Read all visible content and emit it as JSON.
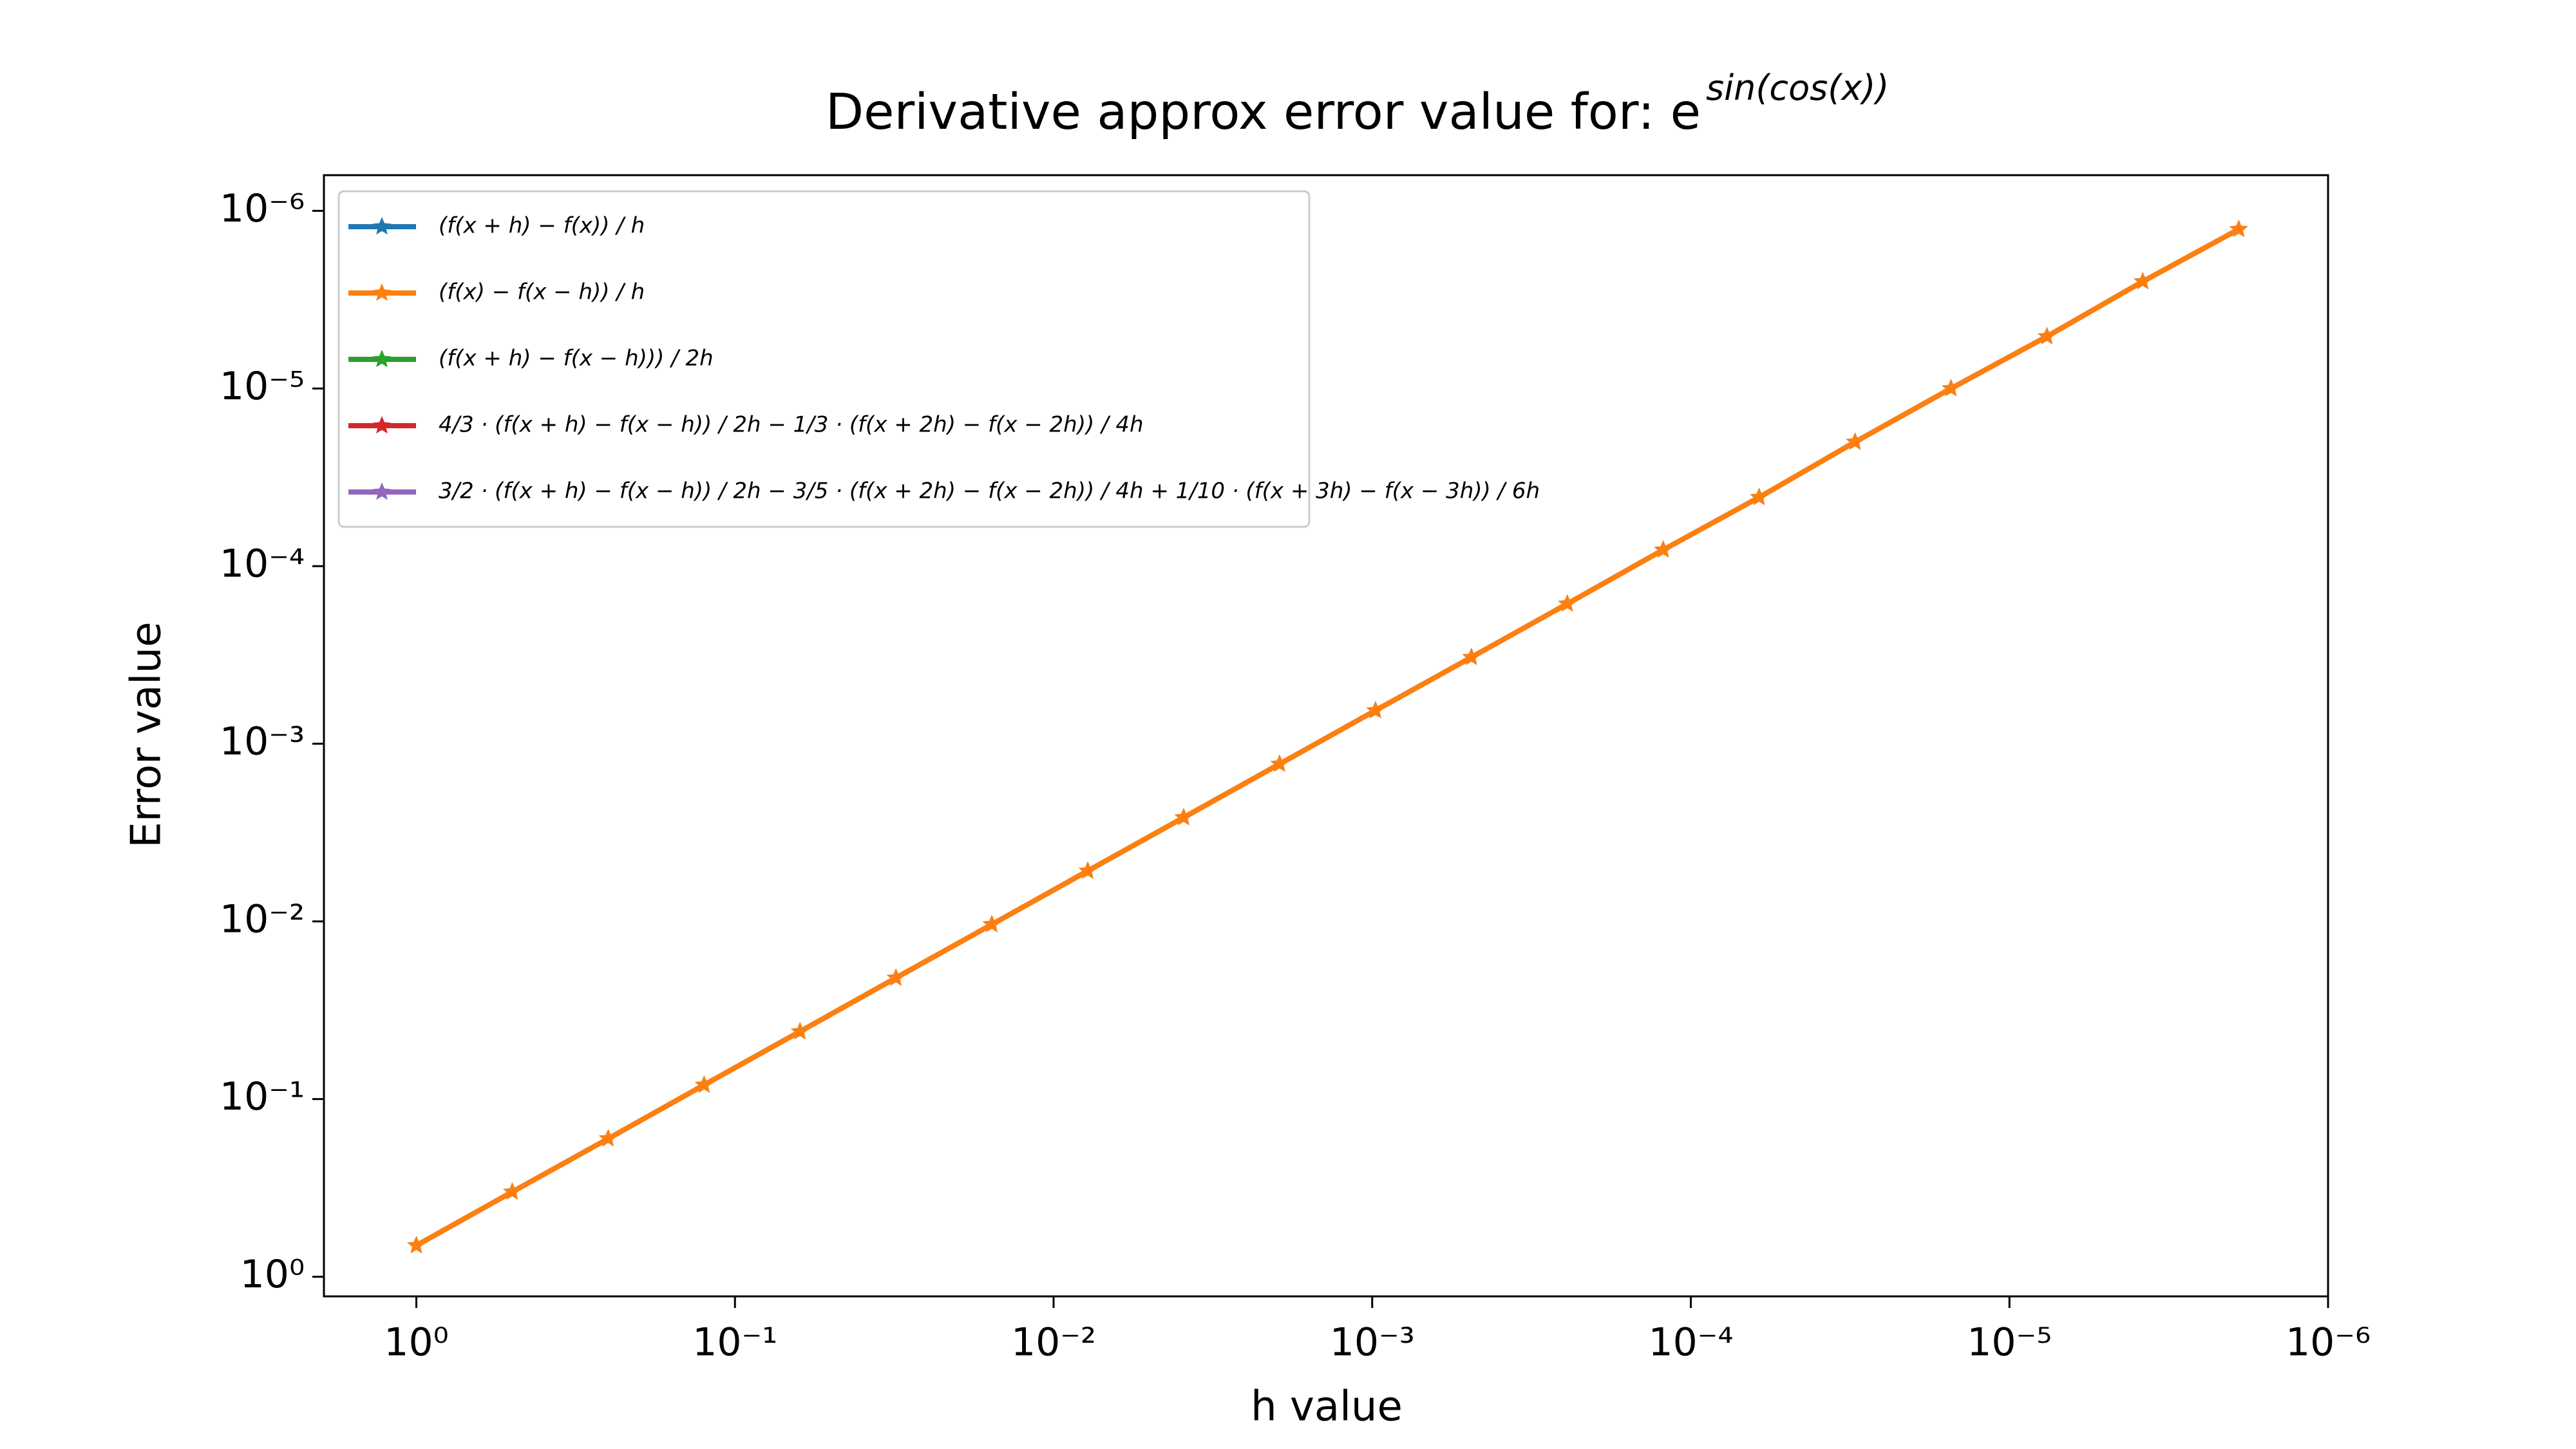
{
  "chart_data": {
    "type": "line",
    "title": "Derivative approx error value for: e",
    "title_superscript": "sin(cos(x))",
    "x_label": "h value",
    "y_label": "Error value",
    "log_x": true,
    "log_y": true,
    "xlim": [
      1.95,
      1e-06
    ],
    "ylim": [
      1.29,
      6.3e-07
    ],
    "xticks": [
      {
        "value": 1,
        "label": "10⁰"
      },
      {
        "value": 0.1,
        "label": "10⁻¹"
      },
      {
        "value": 0.01,
        "label": "10⁻²"
      },
      {
        "value": 0.001,
        "label": "10⁻³"
      },
      {
        "value": 0.0001,
        "label": "10⁻⁴"
      },
      {
        "value": 1e-05,
        "label": "10⁻⁵"
      },
      {
        "value": 1e-06,
        "label": "10⁻⁶"
      }
    ],
    "yticks": [
      {
        "value": 1,
        "label": "10⁰"
      },
      {
        "value": 0.1,
        "label": "10⁻¹"
      },
      {
        "value": 0.01,
        "label": "10⁻²"
      },
      {
        "value": 0.001,
        "label": "10⁻³"
      },
      {
        "value": 0.0001,
        "label": "10⁻⁴"
      },
      {
        "value": 1e-05,
        "label": "10⁻⁵"
      },
      {
        "value": 1e-06,
        "label": "10⁻⁶"
      }
    ],
    "legend": "upper left",
    "x": [
      1,
      0.5,
      0.25,
      0.125,
      0.0625,
      0.03125,
      0.015625,
      0.0078125,
      0.00390625,
      0.001953125,
      0.0009765625,
      0.00048828125,
      0.000244140625,
      0.0001220703125,
      6.103515625e-05,
      3.0517578125e-05,
      1.52587890625e-05,
      7.62939453125e-06,
      3.814697265625e-06,
      1.9073486328125e-06
    ],
    "series": [
      {
        "name": "(f(x + h) − f(x)) / h",
        "color": "#1f77b4",
        "values": [
          0.667,
          0.333,
          0.167,
          0.0833,
          0.0417,
          0.0208,
          0.0104,
          0.0052,
          0.0026,
          0.0013,
          0.00065,
          0.000326,
          0.000163,
          8.1e-05,
          4.1e-05,
          2e-05,
          1e-05,
          5.1e-06,
          2.5e-06,
          1.27e-06
        ]
      },
      {
        "name": "(f(x) − f(x − h)) / h",
        "color": "#ff7f0e",
        "values": [
          0.667,
          0.333,
          0.167,
          0.0833,
          0.0417,
          0.0208,
          0.0104,
          0.0052,
          0.0026,
          0.0013,
          0.00065,
          0.000326,
          0.000163,
          8.1e-05,
          4.1e-05,
          2e-05,
          1e-05,
          5.1e-06,
          2.5e-06,
          1.27e-06
        ]
      },
      {
        "name": "(f(x + h) − f(x − h))) / 2h",
        "color": "#2ca02c",
        "values": [
          null,
          null,
          null,
          null,
          null,
          null,
          null,
          null,
          null,
          null,
          null,
          null,
          null,
          null,
          null,
          null,
          null,
          null,
          null,
          null
        ]
      },
      {
        "name": "4/3 · (f(x + h) − f(x − h)) / 2h − 1/3 · (f(x + 2h) − f(x − 2h)) / 4h",
        "color": "#d62728",
        "values": [
          null,
          null,
          null,
          null,
          null,
          null,
          null,
          null,
          null,
          null,
          null,
          null,
          null,
          null,
          null,
          null,
          null,
          null,
          null,
          null
        ]
      },
      {
        "name": "3/2 · (f(x + h) − f(x − h)) / 2h − 3/5 · (f(x + 2h) − f(x − 2h)) / 4h + 1/10 · (f(x + 3h) − f(x − 3h)) / 6h",
        "color": "#9467bd",
        "values": [
          null,
          null,
          null,
          null,
          null,
          null,
          null,
          null,
          null,
          null,
          null,
          null,
          null,
          null,
          null,
          null,
          null,
          null,
          null,
          null
        ]
      }
    ]
  }
}
